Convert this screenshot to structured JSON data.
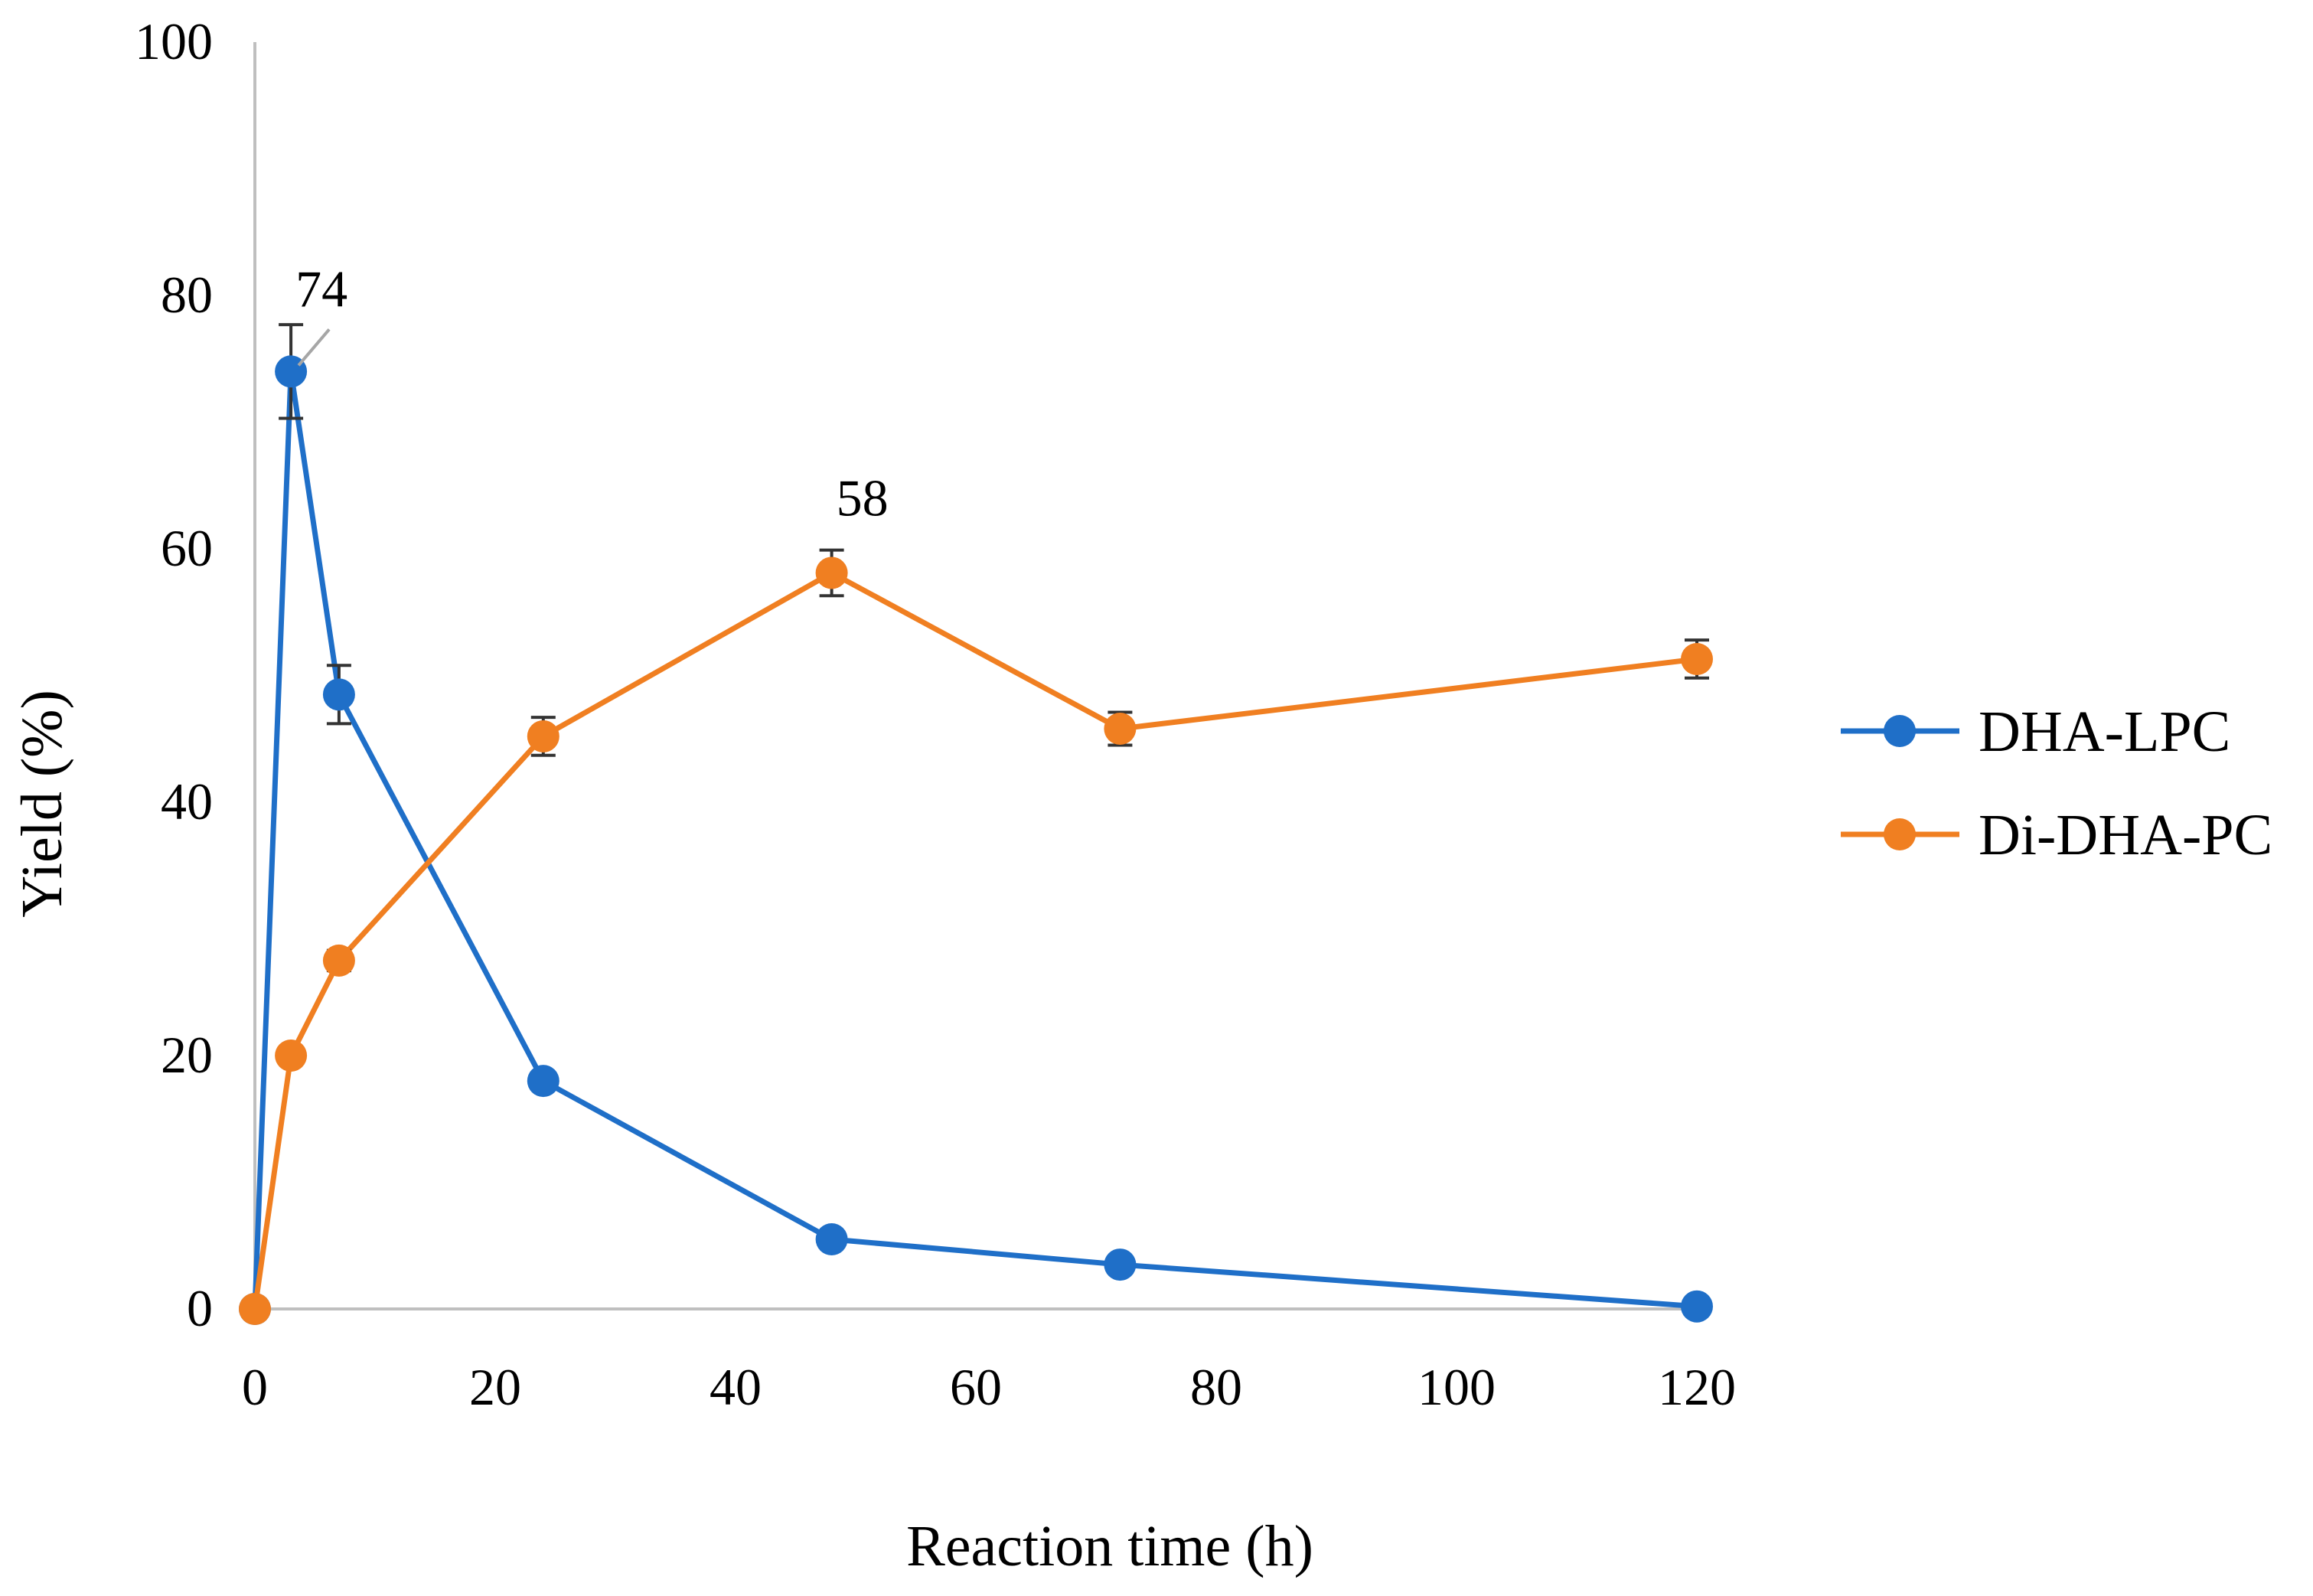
{
  "chart_data": {
    "type": "line",
    "title": "",
    "xlabel": "Reaction time (h)",
    "ylabel": "Yield (%)",
    "xlim": [
      0,
      120
    ],
    "ylim": [
      0,
      100
    ],
    "xticks": [
      0,
      20,
      40,
      60,
      80,
      100,
      120
    ],
    "yticks": [
      0,
      20,
      40,
      60,
      80,
      100
    ],
    "grid": false,
    "legend_position": "right",
    "series": [
      {
        "name": "DHA-LPC",
        "color": "#1f6fc8",
        "x": [
          0,
          3,
          7,
          24,
          48,
          72,
          120
        ],
        "y": [
          0,
          74,
          48.5,
          18,
          5.5,
          3.5,
          0.2
        ],
        "error": [
          0,
          3.7,
          2.3,
          0,
          0,
          0,
          0
        ]
      },
      {
        "name": "Di-DHA-PC",
        "color": "#f07f21",
        "x": [
          0,
          3,
          7,
          24,
          48,
          72,
          120
        ],
        "y": [
          0,
          20,
          27.5,
          45.2,
          58.1,
          45.8,
          51.3
        ],
        "error": [
          0,
          0,
          0.8,
          1.5,
          1.8,
          1.3,
          1.5
        ]
      }
    ],
    "annotations": [
      {
        "text": "74",
        "series": "DHA-LPC",
        "x": 3,
        "y": 74
      },
      {
        "text": "58",
        "series": "Di-DHA-PC",
        "x": 48,
        "y": 58.1
      }
    ]
  }
}
